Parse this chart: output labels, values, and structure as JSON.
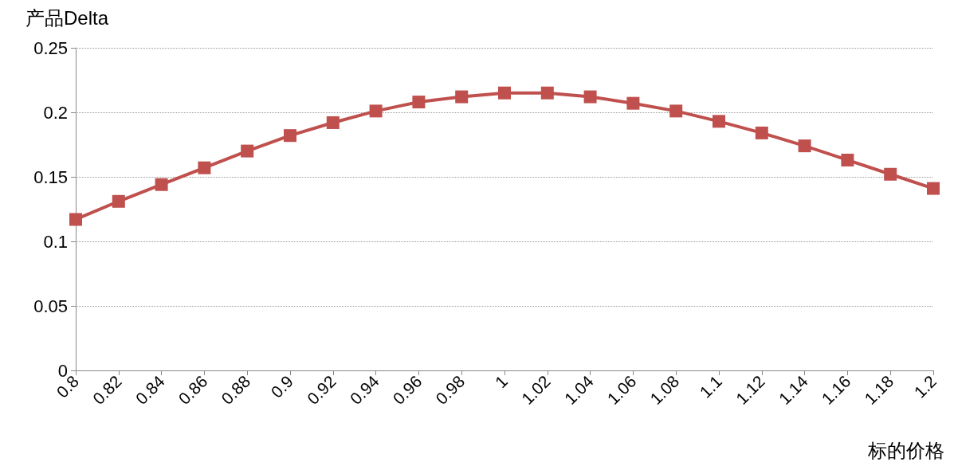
{
  "chart_data": {
    "type": "line",
    "xlabel": "标的价格",
    "ylabel": "产品Delta",
    "categories": [
      "0.8",
      "0.82",
      "0.84",
      "0.86",
      "0.88",
      "0.9",
      "0.92",
      "0.94",
      "0.96",
      "0.98",
      "1",
      "1.02",
      "1.04",
      "1.06",
      "1.08",
      "1.1",
      "1.12",
      "1.14",
      "1.16",
      "1.18",
      "1.2"
    ],
    "series": [
      {
        "color": "#c0504d",
        "values": [
          0.117,
          0.131,
          0.144,
          0.157,
          0.17,
          0.182,
          0.192,
          0.201,
          0.208,
          0.212,
          0.215,
          0.215,
          0.212,
          0.207,
          0.201,
          0.193,
          0.184,
          0.174,
          0.163,
          0.152,
          0.141
        ]
      }
    ],
    "ylim": [
      0,
      0.25
    ],
    "yticks": [
      0,
      0.05,
      0.1,
      0.15,
      0.2,
      0.25
    ],
    "grid": "y",
    "marker": "square",
    "line_style": "solid"
  }
}
